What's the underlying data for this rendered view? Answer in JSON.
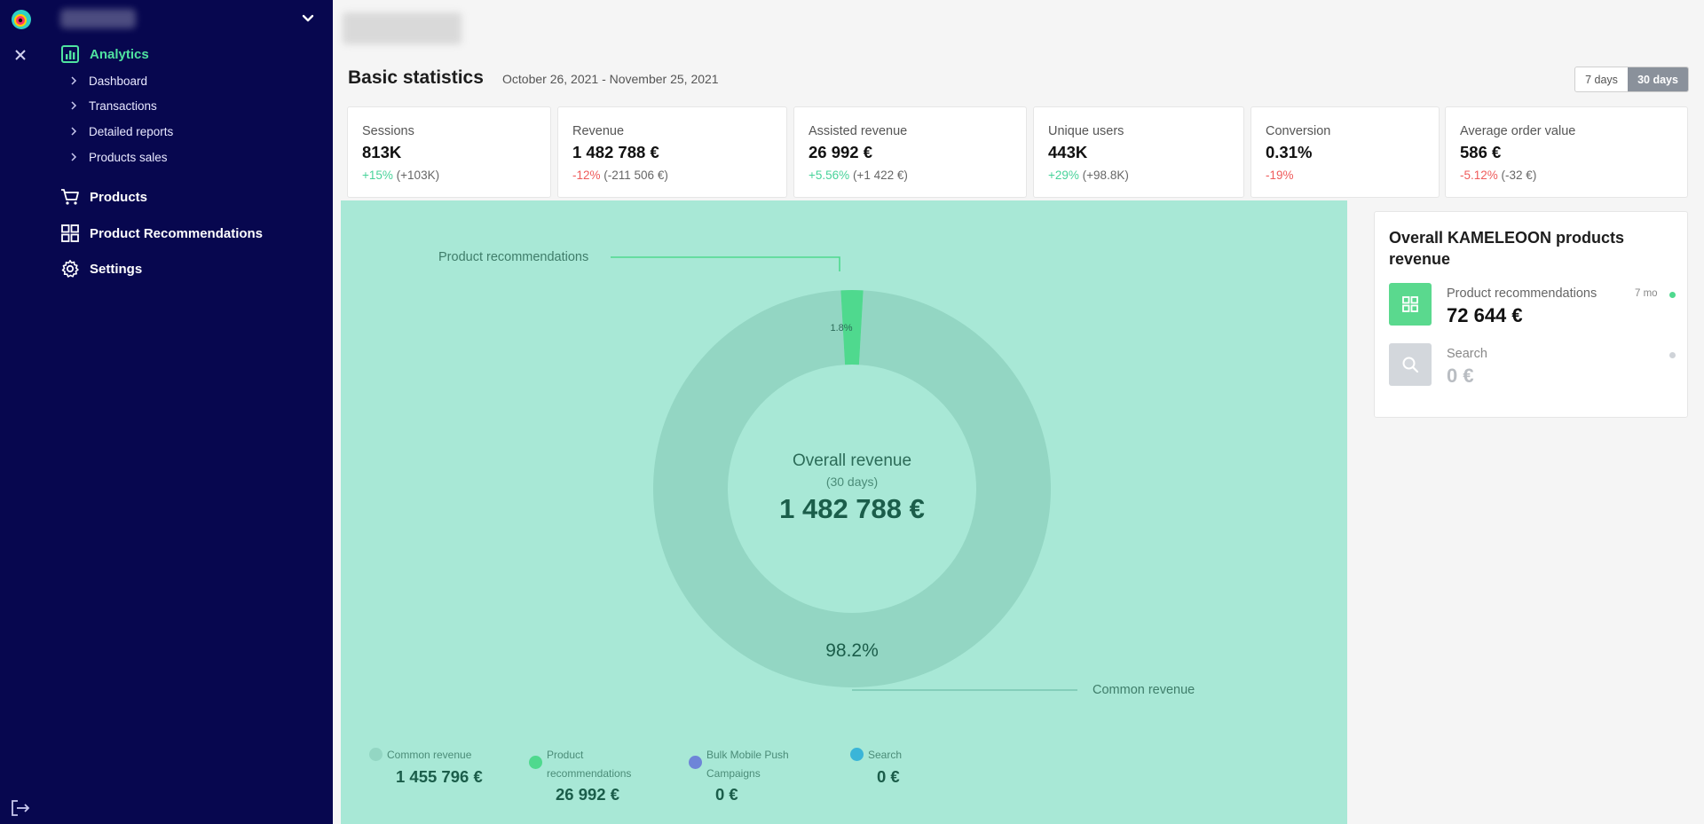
{
  "sidebar": {
    "nav": [
      {
        "label": "Analytics",
        "icon": "bar-chart-icon",
        "active": true
      },
      {
        "label": "Products",
        "icon": "cart-icon",
        "active": false
      },
      {
        "label": "Product Recommendations",
        "icon": "grid-icon",
        "active": false
      },
      {
        "label": "Settings",
        "icon": "gear-icon",
        "active": false
      }
    ],
    "analytics_sub": [
      "Dashboard",
      "Transactions",
      "Detailed reports",
      "Products sales"
    ]
  },
  "header": {
    "title": "Basic statistics",
    "date_range": "October 26, 2021 - November 25, 2021",
    "ranges": [
      "7 days",
      "30 days"
    ],
    "active_range": "30 days"
  },
  "stats": [
    {
      "label": "Sessions",
      "value": "813K",
      "change": "+15%",
      "change_type": "positive",
      "detail": "(+103K)"
    },
    {
      "label": "Revenue",
      "value": "1 482 788 €",
      "change": "-12%",
      "change_type": "negative",
      "detail": "(-211 506 €)"
    },
    {
      "label": "Assisted revenue",
      "value": "26 992 €",
      "change": "+5.56%",
      "change_type": "positive",
      "detail": "(+1 422 €)"
    },
    {
      "label": "Unique users",
      "value": "443K",
      "change": "+29%",
      "change_type": "positive",
      "detail": "(+98.8K)"
    },
    {
      "label": "Conversion",
      "value": "0.31%",
      "change": "-19%",
      "change_type": "negative",
      "detail": ""
    },
    {
      "label": "Average order value",
      "value": "586 €",
      "change": "-5.12%",
      "change_type": "negative",
      "detail": "(-32 €)"
    }
  ],
  "chart_data": {
    "type": "pie",
    "title": "Overall revenue",
    "subtitle": "(30 days)",
    "center_value": "1 482 788 €",
    "slices": [
      {
        "name": "Common revenue",
        "percent": 98.2,
        "color": "#93d6c3"
      },
      {
        "name": "Product recommendations",
        "percent": 1.8,
        "color": "#4fd98e"
      }
    ],
    "slice_labels": [
      "98.2%",
      "1.8%"
    ],
    "callouts": [
      "Product recommendations",
      "Common revenue"
    ],
    "legend": [
      {
        "name": "Common revenue",
        "value": "1 455 796 €",
        "color": "#93d6c3"
      },
      {
        "name": "Product recommendations",
        "value": "26 992 €",
        "color": "#4fd98e"
      },
      {
        "name": "Bulk Mobile Push Campaigns",
        "value": "0 €",
        "color": "#6e85d8"
      },
      {
        "name": "Search",
        "value": "0 €",
        "color": "#3ab5d8"
      }
    ]
  },
  "kameleoon": {
    "title": "Overall KAMELEOON products revenue",
    "items": [
      {
        "name": "Product recommendations",
        "value": "72 644 €",
        "badge": "7 mo",
        "status_color": "#4fd98e",
        "icon": "grid-icon",
        "icon_bg": "#5ad98e"
      },
      {
        "name": "Search",
        "value": "0 €",
        "badge": "",
        "status_color": "#cfd3d8",
        "icon": "search-icon",
        "icon_bg": "#d3d7dc"
      }
    ]
  }
}
